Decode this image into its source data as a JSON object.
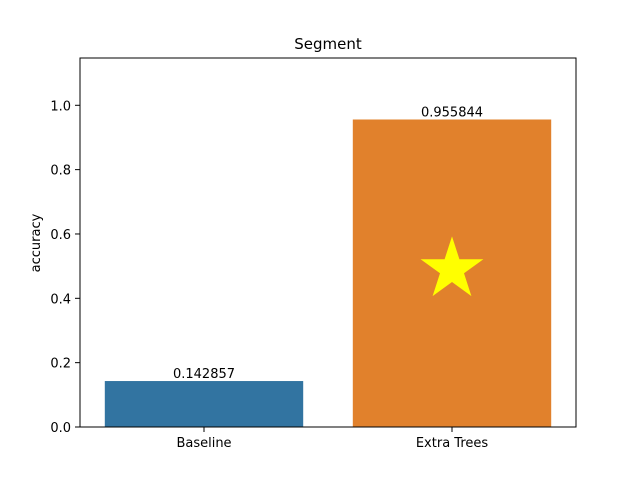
{
  "chart_data": {
    "type": "bar",
    "title": "Segment",
    "xlabel": "",
    "ylabel": "accuracy",
    "categories": [
      "Baseline",
      "Extra Trees"
    ],
    "values": [
      0.142857,
      0.955844
    ],
    "value_labels": [
      "0.142857",
      "0.955844"
    ],
    "bar_colors": [
      "#3274a1",
      "#e1812c"
    ],
    "ylim": [
      0,
      1.147
    ],
    "yticks": [
      0.0,
      0.2,
      0.4,
      0.6,
      0.8,
      1.0
    ],
    "ytick_labels": [
      "0.0",
      "0.2",
      "0.4",
      "0.6",
      "0.8",
      "1.0"
    ],
    "grid": false,
    "marker": {
      "shape": "star",
      "category": "Extra Trees",
      "y": 0.49,
      "color": "#ffff00"
    }
  }
}
